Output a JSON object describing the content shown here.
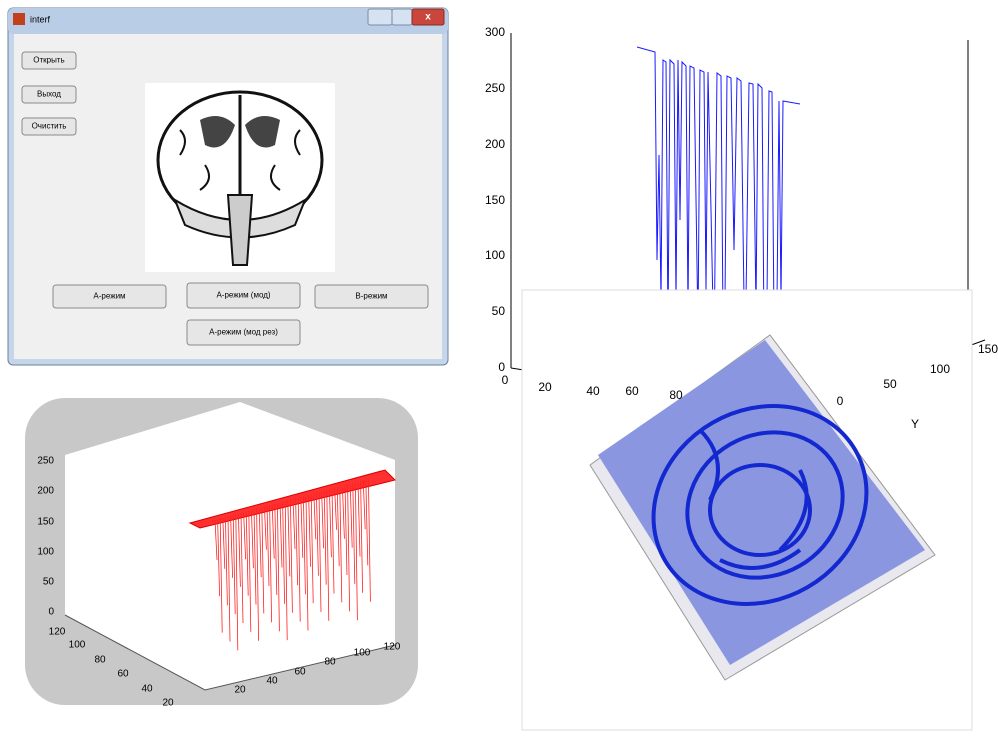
{
  "window": {
    "title": "interf",
    "buttons": [
      "Открыть",
      "Выход",
      "Очистить"
    ],
    "mode_buttons": [
      "А-режим",
      "А-режим (мод)",
      "В-режим",
      "А-режим (мод рез)"
    ]
  },
  "plot_top": {
    "z_ticks": [
      "300",
      "250",
      "200",
      "150",
      "100",
      "50",
      "0"
    ],
    "x_ticks": [
      "0",
      "20",
      "40",
      "60",
      "80"
    ],
    "y_ticks": [
      "150",
      "100",
      "50",
      "0"
    ],
    "y_label": "Y"
  },
  "plot_mesh": {
    "z_ticks": [
      "250",
      "200",
      "150",
      "100",
      "50",
      "0"
    ],
    "y_ticks": [
      "120",
      "100",
      "80",
      "60",
      "40",
      "20"
    ],
    "x_ticks": [
      "20",
      "40",
      "60",
      "80",
      "100",
      "120"
    ]
  }
}
